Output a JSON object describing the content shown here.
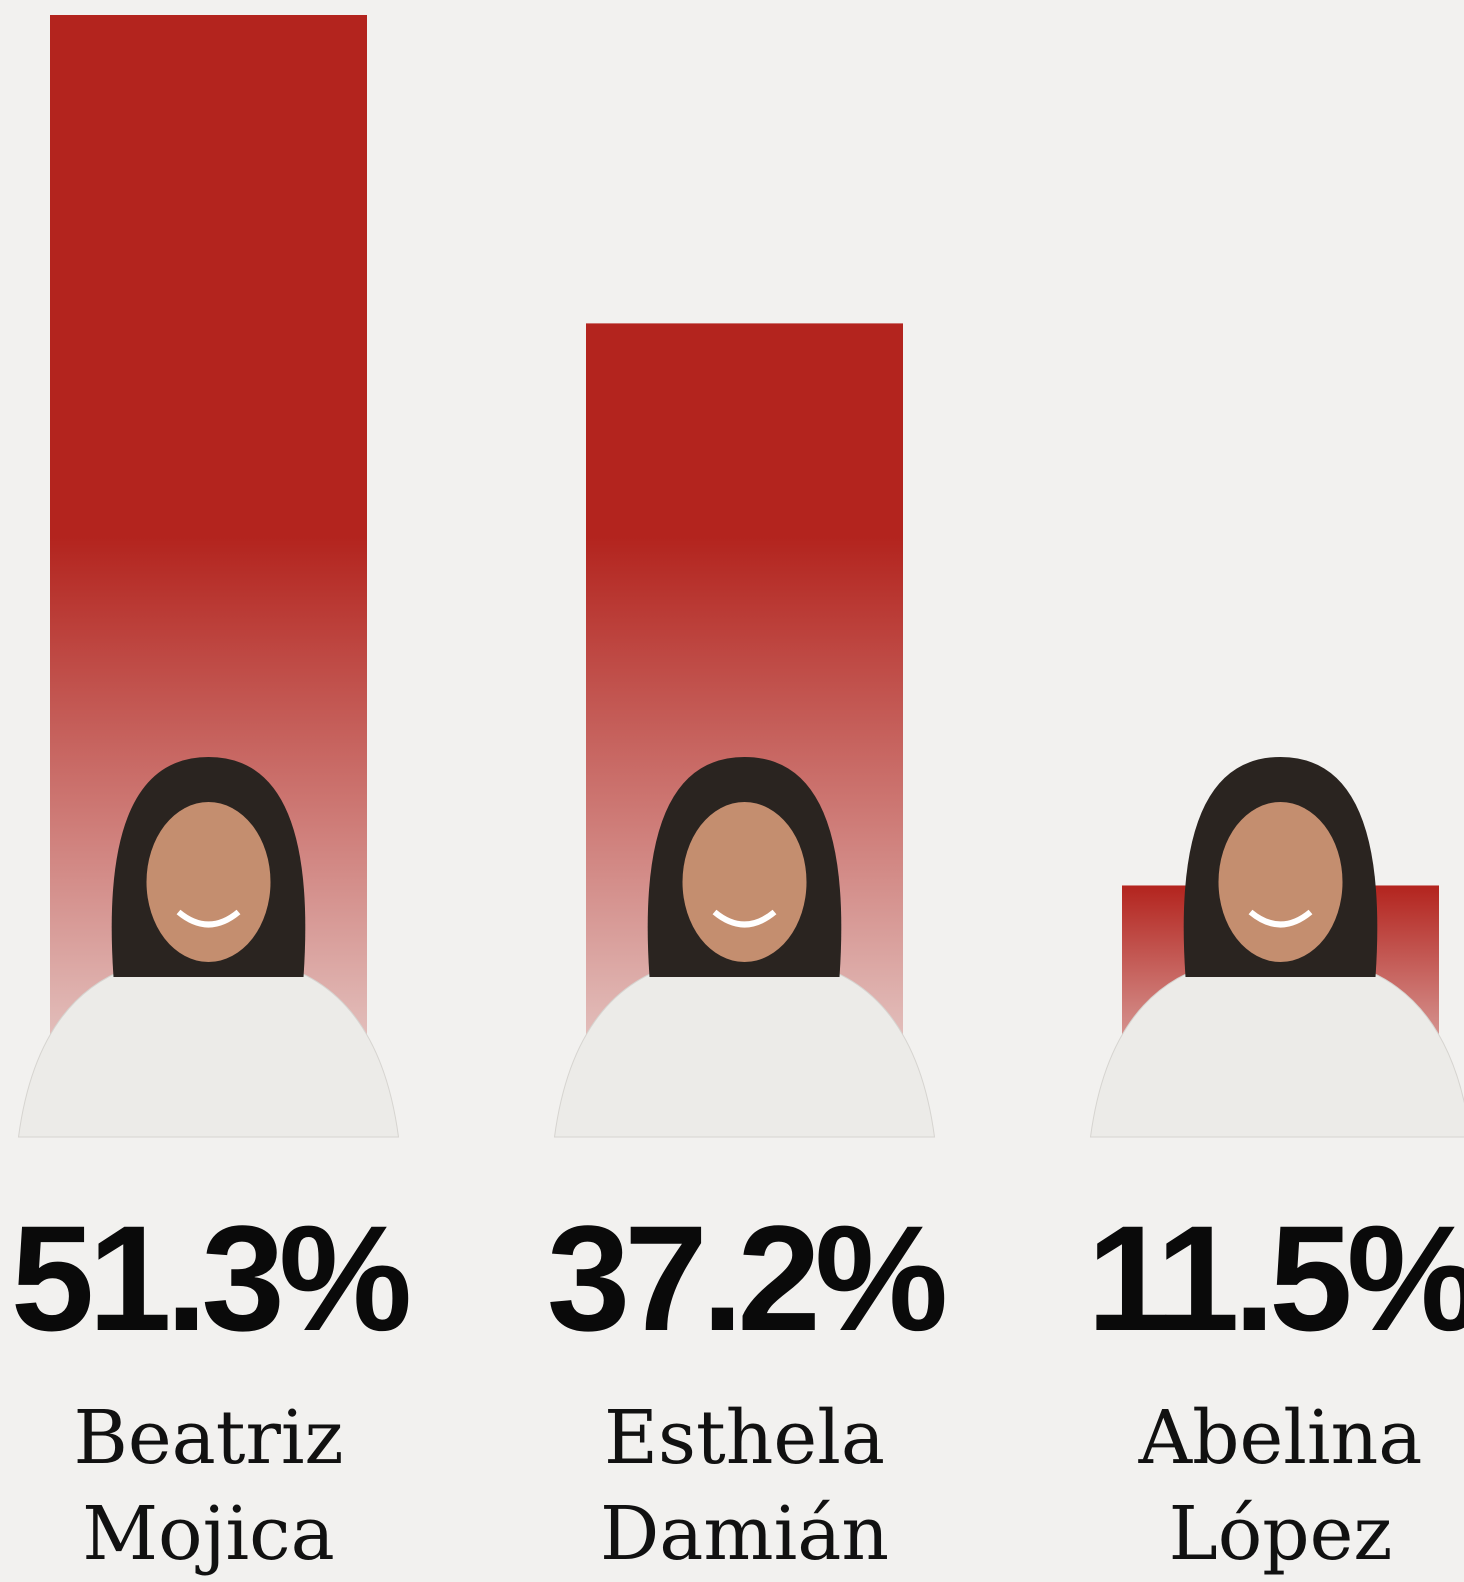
{
  "chart_data": {
    "type": "bar",
    "categories": [
      "Beatriz Mojica",
      "Esthela Damián",
      "Abelina López"
    ],
    "values": [
      51.3,
      37.2,
      11.5
    ],
    "value_labels": [
      "51.3%",
      "37.2%",
      "11.5%"
    ],
    "color": "#b3241e"
  }
}
